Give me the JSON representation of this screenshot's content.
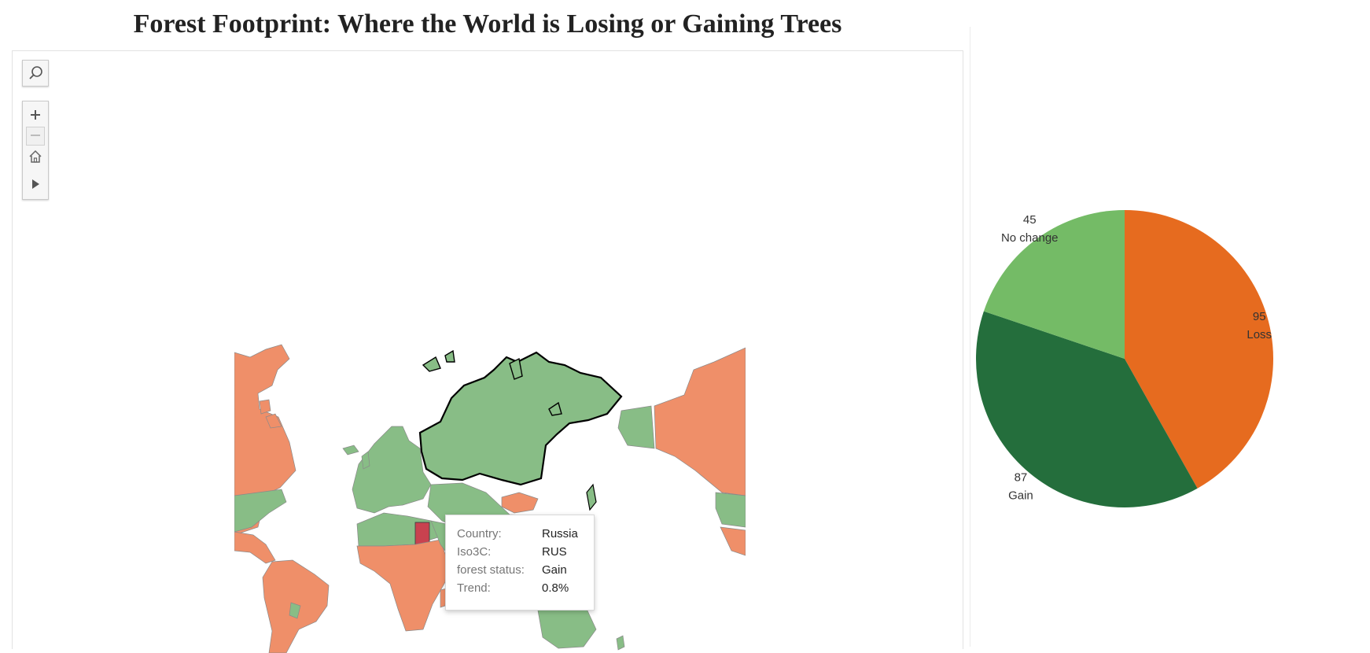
{
  "title": "Forest Footprint: Where the World is Losing or Gaining Trees",
  "map_toolbar": {
    "search_icon": "search-icon",
    "zoom_in_icon": "plus-icon",
    "zoom_out_icon": "minus-icon",
    "home_icon": "home-icon",
    "pan_icon": "play-triangle-icon"
  },
  "colors": {
    "loss": "#e66b1f",
    "gain": "#246e3c",
    "no_change": "#74bb66",
    "map_loss": "#ef8f69",
    "map_gain": "#88bd86",
    "map_highlight": "#c9424f"
  },
  "tooltip": {
    "rows": [
      {
        "label": "Country:",
        "value": "Russia"
      },
      {
        "label": "Iso3C:",
        "value": "RUS"
      },
      {
        "label": "forest status:",
        "value": "Gain"
      },
      {
        "label": "Trend:",
        "value": "0.8%"
      }
    ]
  },
  "chart_data": {
    "type": "pie",
    "slices": [
      {
        "label": "Loss",
        "value": 95,
        "color": "#e66b1f"
      },
      {
        "label": "Gain",
        "value": 87,
        "color": "#246e3c"
      },
      {
        "label": "No change",
        "value": 45,
        "color": "#74bb66"
      }
    ],
    "title": "",
    "legend": "none"
  }
}
